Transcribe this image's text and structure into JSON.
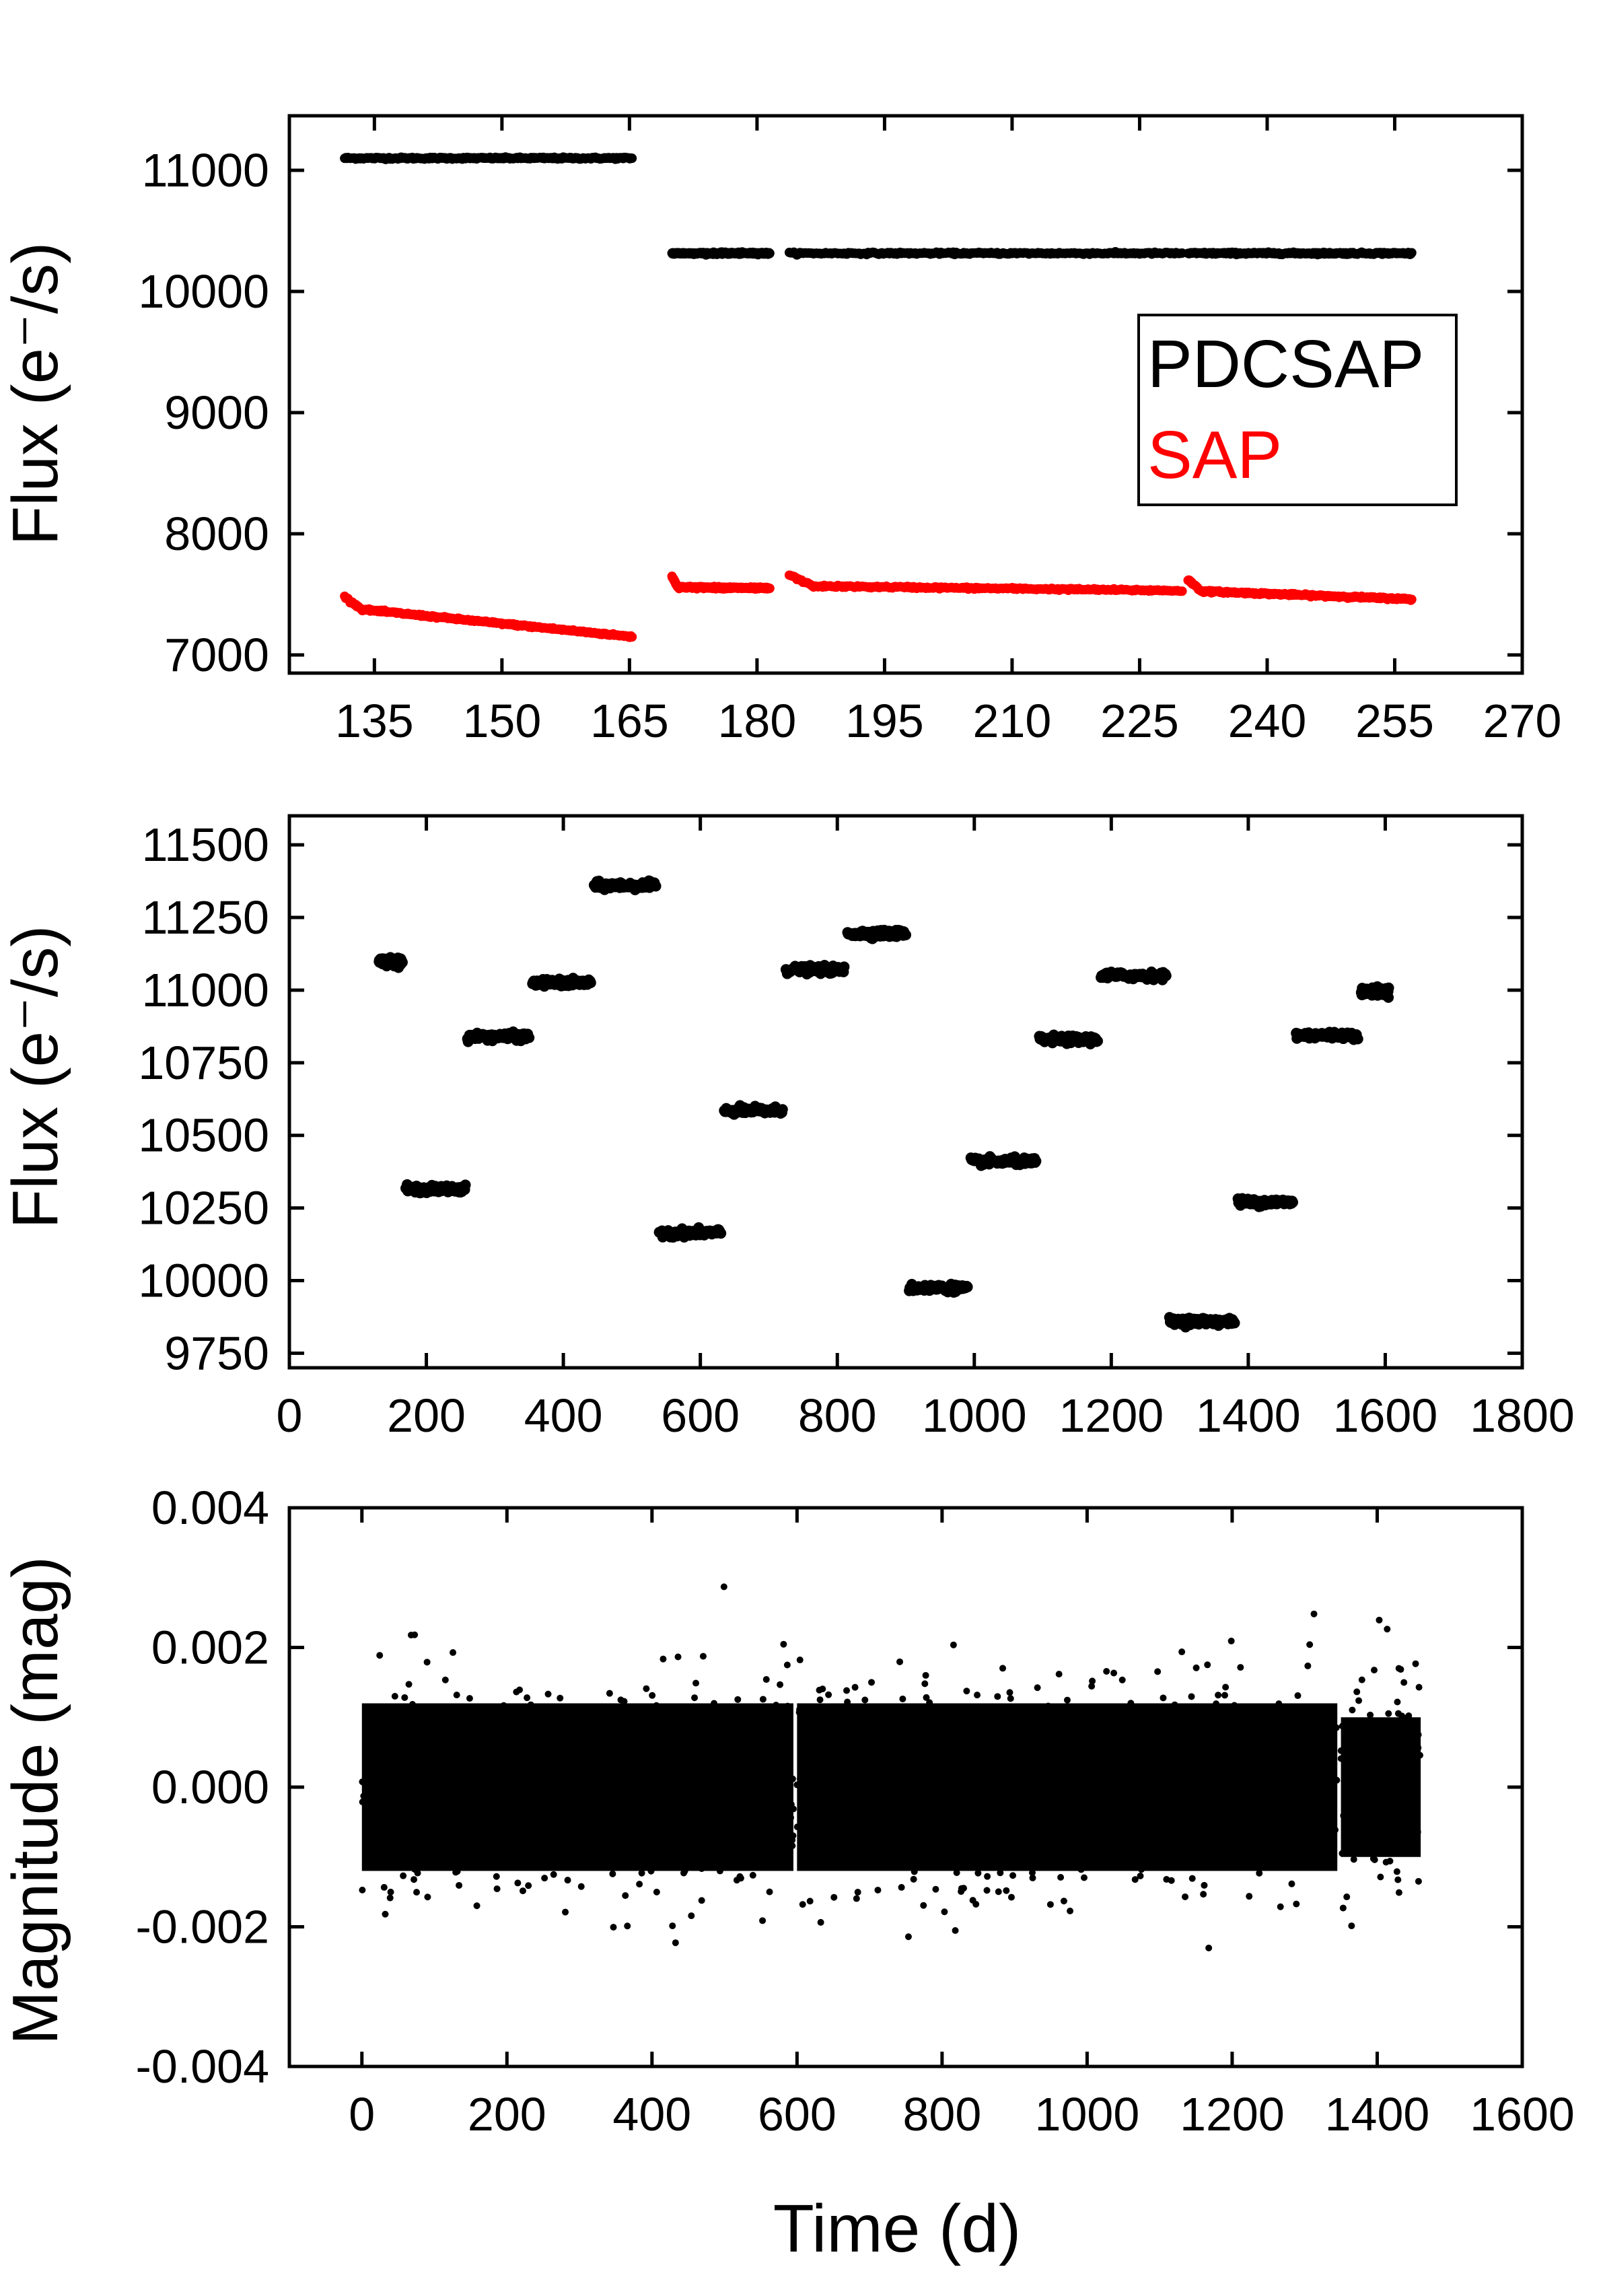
{
  "chart_data": [
    {
      "type": "scatter",
      "ylabel": "Flux  (e⁻/s)",
      "xlim": [
        125,
        270
      ],
      "ylim": [
        6850,
        11450
      ],
      "xticks": [
        135,
        150,
        165,
        180,
        195,
        210,
        225,
        240,
        255,
        270
      ],
      "yticks": [
        7000,
        8000,
        9000,
        10000,
        11000
      ],
      "legend": {
        "position": "right",
        "entries": [
          "PDCSAP",
          "SAP"
        ]
      },
      "series": [
        {
          "name": "PDCSAP",
          "color": "#000000",
          "segments": [
            {
              "x": [
                131.5,
                165.3
              ],
              "y": [
                11100,
                11100
              ]
            },
            {
              "x": [
                170.0,
                181.5
              ],
              "y": [
                10315,
                10315
              ]
            },
            {
              "x": [
                183.8,
                230.0
              ],
              "y": [
                10315,
                10315
              ]
            },
            {
              "x": [
                230.7,
                257.0
              ],
              "y": [
                10315,
                10315
              ]
            }
          ]
        },
        {
          "name": "SAP",
          "color": "#ff0000",
          "segments": [
            {
              "x": [
                131.5,
                165.3
              ],
              "y": [
                7390,
                7150
              ]
            },
            {
              "x": [
                170.0,
                181.5
              ],
              "y": [
                7560,
                7550
              ]
            },
            {
              "x": [
                183.8,
                230.0
              ],
              "y": [
                7570,
                7530
              ]
            },
            {
              "x": [
                230.7,
                257.0
              ],
              "y": [
                7530,
                7460
              ]
            }
          ]
        }
      ]
    },
    {
      "type": "scatter",
      "ylabel": "Flux  (e⁻/s)",
      "xlim": [
        0,
        1800
      ],
      "ylim": [
        9700,
        11600
      ],
      "xticks": [
        0,
        200,
        400,
        600,
        800,
        1000,
        1200,
        1400,
        1600,
        1800
      ],
      "yticks": [
        9750,
        10000,
        10250,
        10500,
        10750,
        11000,
        11250,
        11500
      ],
      "series": [
        {
          "name": "",
          "color": "#000000",
          "segments": [
            {
              "x": [
                131,
                165
              ],
              "y": 11100
            },
            {
              "x": [
                170,
                257
              ],
              "y": 10315
            },
            {
              "x": [
                260,
                350
              ],
              "y": 10840
            },
            {
              "x": [
                355,
                440
              ],
              "y": 11025
            },
            {
              "x": [
                445,
                535
              ],
              "y": 11360
            },
            {
              "x": [
                540,
                630
              ],
              "y": 10165
            },
            {
              "x": [
                635,
                720
              ],
              "y": 10585
            },
            {
              "x": [
                725,
                810
              ],
              "y": 11070
            },
            {
              "x": [
                815,
                900
              ],
              "y": 11195
            },
            {
              "x": [
                905,
                990
              ],
              "y": 9975
            },
            {
              "x": [
                995,
                1090
              ],
              "y": 10410
            },
            {
              "x": [
                1095,
                1180
              ],
              "y": 10830
            },
            {
              "x": [
                1185,
                1280
              ],
              "y": 11050
            },
            {
              "x": [
                1285,
                1380
              ],
              "y": 9860
            },
            {
              "x": [
                1385,
                1465
              ],
              "y": 10270
            },
            {
              "x": [
                1470,
                1560
              ],
              "y": 10845
            },
            {
              "x": [
                1565,
                1605
              ],
              "y": 10995
            }
          ]
        }
      ]
    },
    {
      "type": "scatter",
      "xlabel": "Time  (d)",
      "ylabel": "Magnitude  (mag)",
      "xlim": [
        -100,
        1600
      ],
      "ylim": [
        -0.004,
        0.004
      ],
      "xticks": [
        0,
        200,
        400,
        600,
        800,
        1000,
        1200,
        1400,
        1600
      ],
      "yticks": [
        -0.004,
        -0.002,
        0.0,
        0.002,
        0.004
      ],
      "ytick_labels": [
        "-0.004",
        "-0.002",
        "0.000",
        "0.002",
        "0.004"
      ],
      "series": [
        {
          "name": "",
          "color": "#000000",
          "segments": [
            {
              "x": [
                0,
                595
              ],
              "y_range": [
                -0.0012,
                0.0012
              ]
            },
            {
              "x": [
                600,
                1345
              ],
              "y_range": [
                -0.0012,
                0.0012
              ]
            },
            {
              "x": [
                1350,
                1460
              ],
              "y_range": [
                -0.001,
                0.001
              ]
            }
          ]
        }
      ]
    }
  ]
}
